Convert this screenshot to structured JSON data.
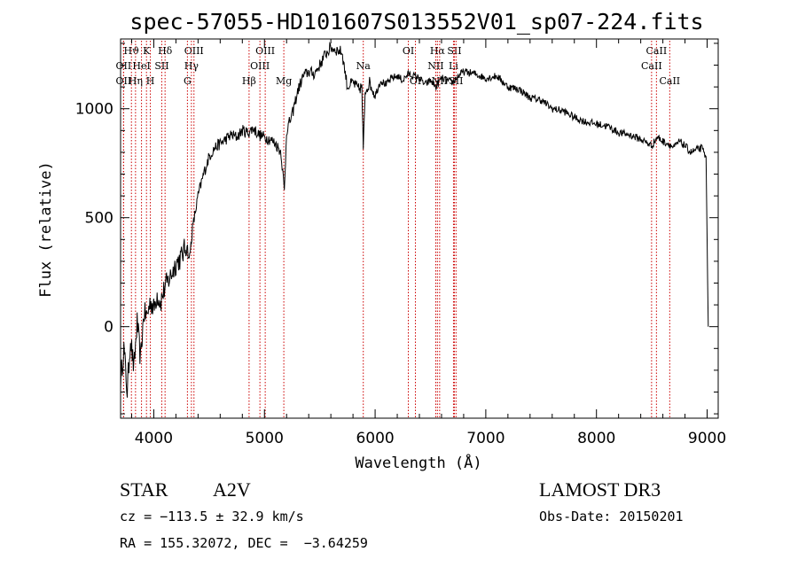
{
  "chart_data": {
    "type": "line",
    "title": "spec-57055-HD101607S013552V01_sp07-224.fits",
    "xlabel": "Wavelength (Å)",
    "ylabel": "Flux (relative)",
    "xlim": [
      3700,
      9100
    ],
    "ylim": [
      -420,
      1320
    ],
    "xticks": [
      4000,
      5000,
      6000,
      7000,
      8000,
      9000
    ],
    "yticks": [
      0,
      500,
      1000
    ],
    "line_color": "#000000",
    "marker_color": "#cc0000",
    "series": [
      {
        "name": "flux",
        "x": [
          3700,
          3730,
          3760,
          3790,
          3820,
          3850,
          3880,
          3910,
          3940,
          3970,
          4000,
          4030,
          4060,
          4100,
          4150,
          4200,
          4250,
          4300,
          4320,
          4350,
          4400,
          4450,
          4500,
          4550,
          4600,
          4650,
          4700,
          4750,
          4800,
          4850,
          4900,
          4950,
          5000,
          5050,
          5100,
          5150,
          5180,
          5200,
          5250,
          5300,
          5350,
          5400,
          5450,
          5500,
          5550,
          5600,
          5650,
          5700,
          5750,
          5800,
          5850,
          5880,
          5893,
          5910,
          5950,
          6000,
          6050,
          6100,
          6150,
          6200,
          6250,
          6300,
          6350,
          6400,
          6450,
          6500,
          6550,
          6600,
          6650,
          6700,
          6750,
          6800,
          6900,
          7000,
          7100,
          7200,
          7300,
          7400,
          7500,
          7600,
          7700,
          7800,
          7900,
          8000,
          8100,
          8200,
          8300,
          8400,
          8500,
          8550,
          8600,
          8650,
          8700,
          8750,
          8800,
          8850,
          8900,
          8950,
          8990,
          9000,
          9010
        ],
        "y": [
          -250,
          -100,
          -300,
          -50,
          -200,
          20,
          -150,
          60,
          50,
          120,
          80,
          150,
          110,
          180,
          230,
          290,
          320,
          380,
          300,
          450,
          600,
          700,
          780,
          820,
          840,
          860,
          880,
          870,
          900,
          890,
          910,
          880,
          870,
          860,
          840,
          800,
          620,
          900,
          970,
          1080,
          1150,
          1170,
          1160,
          1200,
          1250,
          1280,
          1270,
          1260,
          1100,
          1120,
          1090,
          1100,
          800,
          1080,
          1120,
          1060,
          1130,
          1110,
          1140,
          1150,
          1130,
          1160,
          1150,
          1140,
          1110,
          1130,
          1100,
          1140,
          1130,
          1120,
          1150,
          1170,
          1160,
          1140,
          1150,
          1100,
          1090,
          1050,
          1040,
          1000,
          990,
          960,
          940,
          930,
          920,
          890,
          880,
          860,
          830,
          870,
          850,
          840,
          820,
          850,
          830,
          800,
          810,
          820,
          780,
          400,
          0
        ]
      }
    ],
    "line_markers": [
      {
        "label": "Hϑ",
        "wl": 3798,
        "row": 1
      },
      {
        "label": "OII",
        "wl": 3727,
        "row": 2
      },
      {
        "label": "OII",
        "wl": 3727,
        "row": 3
      },
      {
        "label": "K",
        "wl": 3934,
        "row": 1
      },
      {
        "label": "HeI",
        "wl": 3889,
        "row": 2
      },
      {
        "label": "Hη",
        "wl": 3835,
        "row": 3
      },
      {
        "label": "SII",
        "wl": 4072,
        "row": 2
      },
      {
        "label": "H",
        "wl": 3969,
        "row": 3
      },
      {
        "label": "Hδ",
        "wl": 4102,
        "row": 1
      },
      {
        "label": "OIII",
        "wl": 4363,
        "row": 1
      },
      {
        "label": "Hγ",
        "wl": 4340,
        "row": 2
      },
      {
        "label": "G",
        "wl": 4304,
        "row": 3
      },
      {
        "label": "OIII",
        "wl": 5007,
        "row": 1
      },
      {
        "label": "OIII",
        "wl": 4959,
        "row": 2
      },
      {
        "label": "Hβ",
        "wl": 4861,
        "row": 3
      },
      {
        "label": "Mg",
        "wl": 5175,
        "row": 3
      },
      {
        "label": "Na",
        "wl": 5893,
        "row": 2
      },
      {
        "label": "OI",
        "wl": 6300,
        "row": 1
      },
      {
        "label": "OI",
        "wl": 6364,
        "row": 3
      },
      {
        "label": "Hα",
        "wl": 6563,
        "row": 1
      },
      {
        "label": "NII",
        "wl": 6548,
        "row": 2
      },
      {
        "label": "NII",
        "wl": 6583,
        "row": 3
      },
      {
        "label": "SII",
        "wl": 6716,
        "row": 1
      },
      {
        "label": "Li",
        "wl": 6708,
        "row": 2
      },
      {
        "label": "SII",
        "wl": 6731,
        "row": 3
      },
      {
        "label": "CaII",
        "wl": 8542,
        "row": 1
      },
      {
        "label": "CaII",
        "wl": 8498,
        "row": 2
      },
      {
        "label": "CaII",
        "wl": 8662,
        "row": 3
      }
    ]
  },
  "info": {
    "object_type": "STAR",
    "subclass": "A2V",
    "survey": "LAMOST DR3",
    "cz": "cz = −113.5 ± 32.9 km/s",
    "obs_date": "Obs-Date: 20150201",
    "coords": "RA = 155.32072, DEC =  −3.64259"
  }
}
